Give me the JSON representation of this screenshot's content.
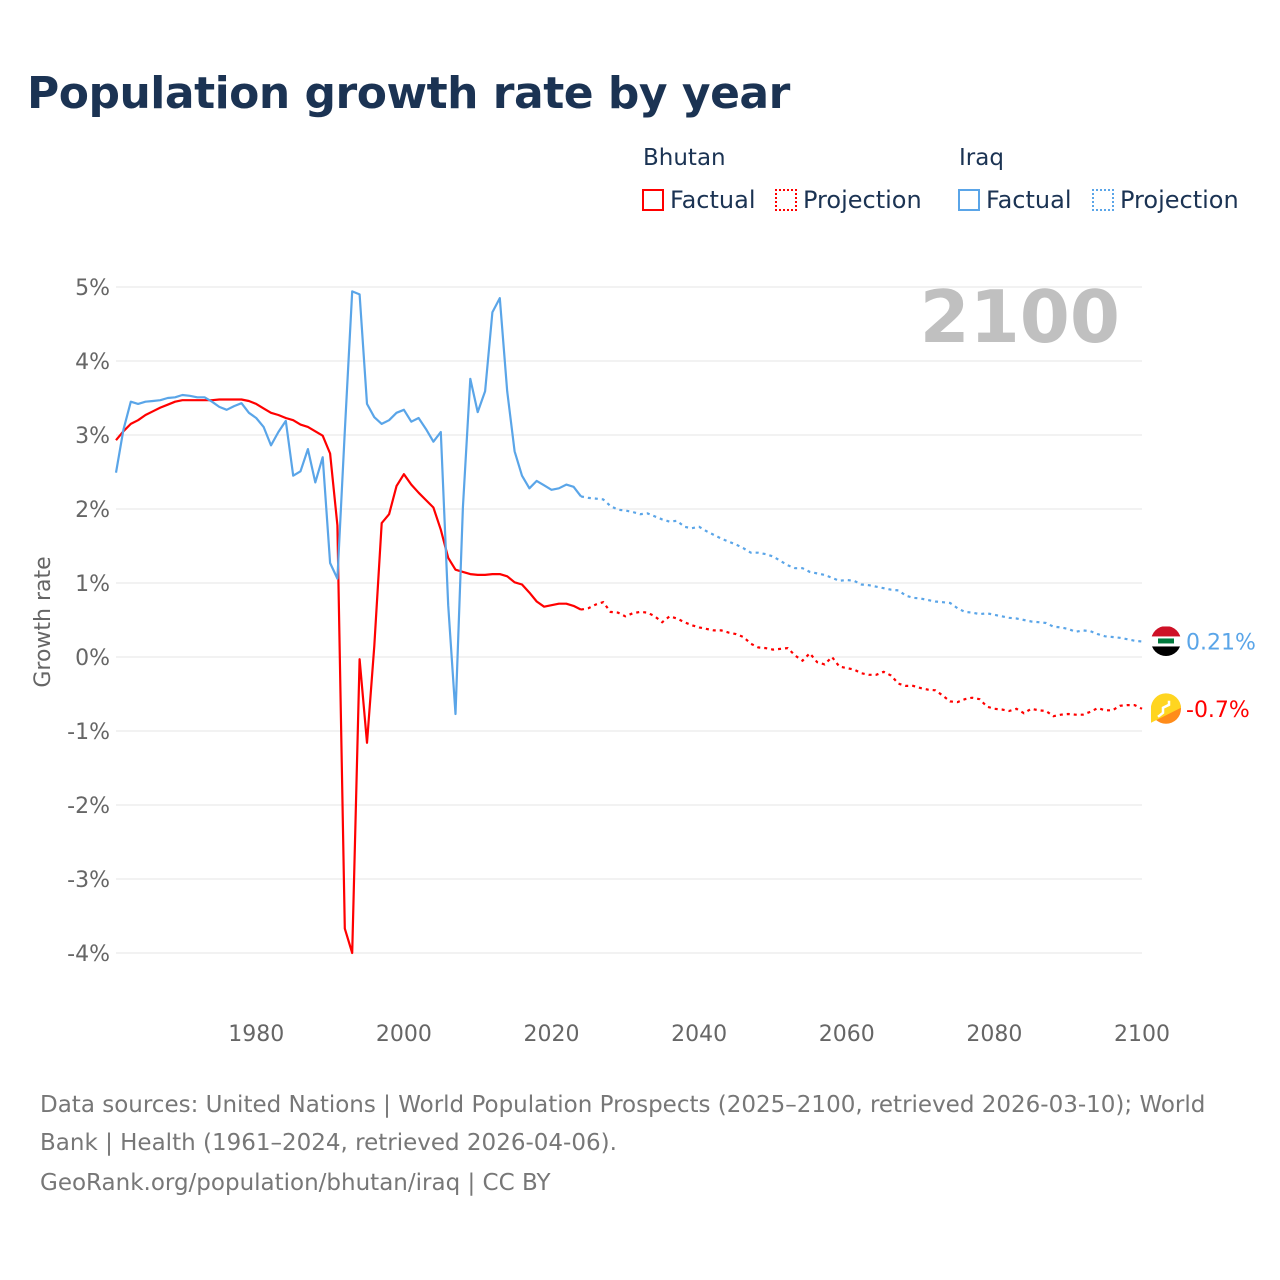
{
  "title": "Population growth rate by year",
  "legend": {
    "groups": [
      {
        "country": "Bhutan",
        "factual": "Factual",
        "projection": "Projection",
        "color": "#ff0000"
      },
      {
        "country": "Iraq",
        "factual": "Factual",
        "projection": "Projection",
        "color": "#5aa5e8"
      }
    ]
  },
  "footer": {
    "sources": "Data sources: United Nations | World Population Prospects (2025–2100, retrieved 2026-03-10); World",
    "sources2": "Bank | Health (1961–2024, retrieved 2026-04-06).",
    "credit": "GeoRank.org/population/bhutan/iraq | CC BY"
  },
  "chart_data": {
    "type": "line",
    "title": "Population growth rate by year",
    "xlabel": "",
    "ylabel": "Growth rate",
    "xlim": [
      1961,
      2100
    ],
    "ylim": [
      -4,
      5
    ],
    "xticks": [
      1980,
      2000,
      2020,
      2040,
      2060,
      2080,
      2100
    ],
    "xtick_labels": [
      "1980",
      "2000",
      "2020",
      "2040",
      "2060",
      "2080",
      "2100"
    ],
    "yticks": [
      5,
      4,
      3,
      2,
      1,
      0,
      -1,
      -2,
      -3,
      -4
    ],
    "ytick_labels": [
      "5%",
      "4%",
      "3%",
      "2%",
      "1%",
      "0%",
      "-1%",
      "-2%",
      "-3%",
      "-4%"
    ],
    "grid": true,
    "current_year_label": "2100",
    "series": [
      {
        "name": "Bhutan",
        "color": "#ff0000",
        "end_label": "-0.7%",
        "flag": "bhutan-flag",
        "factual_start": 1961,
        "factual": [
          2.93,
          3.05,
          3.15,
          3.2,
          3.27,
          3.32,
          3.37,
          3.41,
          3.45,
          3.47,
          3.47,
          3.47,
          3.47,
          3.47,
          3.48,
          3.48,
          3.48,
          3.48,
          3.46,
          3.42,
          3.36,
          3.3,
          3.27,
          3.23,
          3.2,
          3.14,
          3.11,
          3.05,
          2.99,
          2.75,
          1.78,
          -3.67,
          -4.0,
          -0.03,
          -1.16,
          0.15,
          1.81,
          1.93,
          2.31,
          2.47,
          2.33,
          2.22,
          2.12,
          2.02,
          1.72,
          1.34,
          1.18,
          1.15,
          1.12,
          1.11,
          1.11,
          1.12,
          1.12,
          1.09,
          1.01,
          0.98,
          0.87,
          0.75,
          0.68,
          0.7,
          0.72,
          0.72,
          0.69,
          0.64
        ],
        "projection_start": 2025,
        "projection": [
          0.66,
          0.71,
          0.74,
          0.61,
          0.6,
          0.55,
          0.59,
          0.61,
          0.6,
          0.55,
          0.47,
          0.55,
          0.52,
          0.47,
          0.43,
          0.4,
          0.38,
          0.36,
          0.36,
          0.33,
          0.31,
          0.27,
          0.18,
          0.13,
          0.12,
          0.1,
          0.11,
          0.12,
          0.02,
          -0.05,
          0.05,
          -0.07,
          -0.1,
          0.0,
          -0.13,
          -0.15,
          -0.17,
          -0.22,
          -0.24,
          -0.24,
          -0.2,
          -0.25,
          -0.36,
          -0.39,
          -0.39,
          -0.42,
          -0.44,
          -0.45,
          -0.52,
          -0.6,
          -0.61,
          -0.57,
          -0.55,
          -0.57,
          -0.67,
          -0.7,
          -0.71,
          -0.73,
          -0.7,
          -0.76,
          -0.7,
          -0.72,
          -0.73,
          -0.8,
          -0.78,
          -0.77,
          -0.78,
          -0.78,
          -0.74,
          -0.69,
          -0.72,
          -0.72,
          -0.66,
          -0.65,
          -0.65,
          -0.7
        ]
      },
      {
        "name": "Iraq",
        "color": "#5aa5e8",
        "end_label": "0.21%",
        "flag": "iraq-flag",
        "factual_start": 1961,
        "factual": [
          2.49,
          3.07,
          3.45,
          3.42,
          3.45,
          3.46,
          3.47,
          3.5,
          3.51,
          3.54,
          3.53,
          3.51,
          3.51,
          3.45,
          3.38,
          3.34,
          3.39,
          3.43,
          3.3,
          3.23,
          3.11,
          2.86,
          3.04,
          3.19,
          2.45,
          2.51,
          2.81,
          2.36,
          2.7,
          1.27,
          1.06,
          3.05,
          4.94,
          4.9,
          3.42,
          3.24,
          3.15,
          3.2,
          3.3,
          3.34,
          3.18,
          3.23,
          3.08,
          2.91,
          3.04,
          0.7,
          -0.77,
          2.02,
          3.76,
          3.31,
          3.59,
          4.66,
          4.85,
          3.59,
          2.78,
          2.45,
          2.28,
          2.38,
          2.32,
          2.26,
          2.28,
          2.33,
          2.3,
          2.17
        ],
        "projection_start": 2025,
        "projection": [
          2.15,
          2.14,
          2.13,
          2.04,
          1.99,
          1.98,
          1.96,
          1.93,
          1.94,
          1.9,
          1.86,
          1.83,
          1.84,
          1.76,
          1.74,
          1.76,
          1.7,
          1.65,
          1.6,
          1.56,
          1.52,
          1.47,
          1.41,
          1.41,
          1.39,
          1.36,
          1.3,
          1.24,
          1.2,
          1.2,
          1.15,
          1.13,
          1.11,
          1.07,
          1.03,
          1.04,
          1.03,
          0.98,
          0.97,
          0.95,
          0.93,
          0.91,
          0.9,
          0.83,
          0.8,
          0.79,
          0.77,
          0.75,
          0.74,
          0.73,
          0.66,
          0.61,
          0.6,
          0.58,
          0.59,
          0.57,
          0.55,
          0.53,
          0.52,
          0.5,
          0.48,
          0.47,
          0.46,
          0.41,
          0.4,
          0.38,
          0.34,
          0.36,
          0.35,
          0.31,
          0.28,
          0.27,
          0.26,
          0.24,
          0.22,
          0.21
        ]
      }
    ]
  }
}
